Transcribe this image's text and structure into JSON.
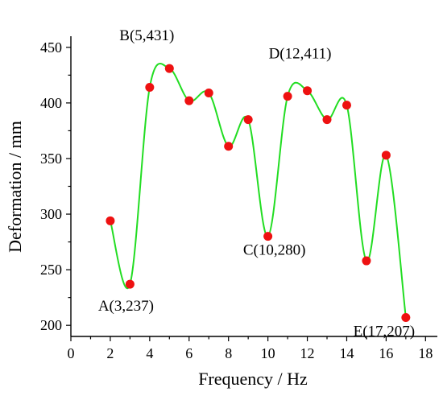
{
  "chart_data": {
    "type": "line",
    "xlabel": "Frequency / Hz",
    "ylabel": "Deformation / mm",
    "xlim": [
      0,
      18.6
    ],
    "ylim": [
      190,
      460
    ],
    "xticks": [
      0,
      2,
      4,
      6,
      8,
      10,
      12,
      14,
      16,
      18
    ],
    "yticks": [
      200,
      250,
      300,
      350,
      400,
      450
    ],
    "grid": false,
    "series": [
      {
        "x": [
          2,
          3,
          4,
          5,
          6,
          7,
          8,
          9,
          10,
          11,
          12,
          13,
          14,
          15,
          16,
          17
        ],
        "y": [
          294,
          237,
          414,
          431,
          402,
          409,
          361,
          385,
          280,
          406,
          411,
          385,
          398,
          258,
          353,
          207
        ],
        "line_color": "#22dd22",
        "marker_color": "#ee1111",
        "smooth": true
      }
    ],
    "annotations": [
      {
        "text": "A(3,237)",
        "x": 3,
        "y": 237
      },
      {
        "text": "B(5,431)",
        "x": 5,
        "y": 431
      },
      {
        "text": "C(10,280)",
        "x": 10,
        "y": 280
      },
      {
        "text": "D(12,411)",
        "x": 12,
        "y": 411
      },
      {
        "text": "E(17,207)",
        "x": 17,
        "y": 207
      }
    ]
  }
}
